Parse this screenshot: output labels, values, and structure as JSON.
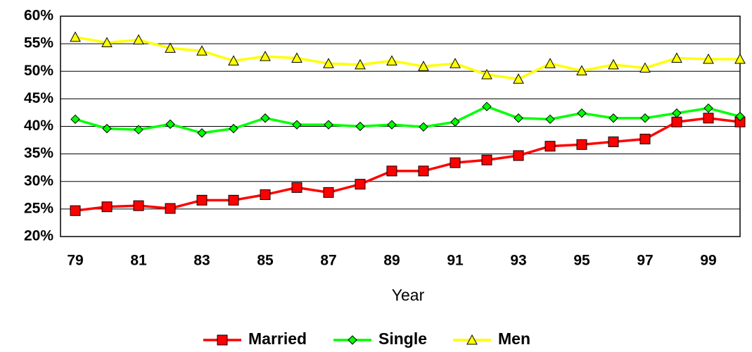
{
  "chart_data": {
    "type": "line",
    "x_label": "Year",
    "categories": [
      "79",
      null,
      "81",
      null,
      "83",
      null,
      "85",
      null,
      "87",
      null,
      "89",
      null,
      "91",
      null,
      "93",
      null,
      "95",
      null,
      "97",
      null,
      "99",
      null
    ],
    "series": [
      {
        "name": "Married",
        "color": "#ff0000",
        "marker": "square",
        "values": [
          24.7,
          25.4,
          25.6,
          25.1,
          26.6,
          26.6,
          27.6,
          28.9,
          28.0,
          29.5,
          31.9,
          31.9,
          33.4,
          33.9,
          34.7,
          36.4,
          36.7,
          37.2,
          37.7,
          40.8,
          41.5,
          40.8
        ]
      },
      {
        "name": "Single",
        "color": "#00ff00",
        "marker": "diamond",
        "values": [
          41.3,
          39.6,
          39.4,
          40.4,
          38.8,
          39.6,
          41.5,
          40.3,
          40.3,
          40.0,
          40.3,
          39.9,
          40.8,
          43.6,
          41.5,
          41.3,
          42.4,
          41.5,
          41.5,
          42.4,
          43.3,
          41.8
        ]
      },
      {
        "name": "Men",
        "color": "#ffff00",
        "marker": "triangle",
        "values": [
          56.2,
          55.2,
          55.7,
          54.2,
          53.7,
          51.9,
          52.7,
          52.4,
          51.4,
          51.2,
          51.9,
          50.9,
          51.4,
          49.4,
          48.6,
          51.4,
          50.1,
          51.2,
          50.6,
          52.4,
          52.2,
          52.2
        ]
      }
    ],
    "ylim": [
      20,
      60
    ],
    "yticks": [
      {
        "value": 20,
        "label": "20%"
      },
      {
        "value": 25,
        "label": "25%"
      },
      {
        "value": 30,
        "label": "30%"
      },
      {
        "value": 35,
        "label": "35%"
      },
      {
        "value": 40,
        "label": "40%"
      },
      {
        "value": 45,
        "label": "45%"
      },
      {
        "value": 50,
        "label": "50%"
      },
      {
        "value": 55,
        "label": "55%"
      },
      {
        "value": 60,
        "label": "60%"
      }
    ],
    "grid": true,
    "legend": "bottom"
  }
}
